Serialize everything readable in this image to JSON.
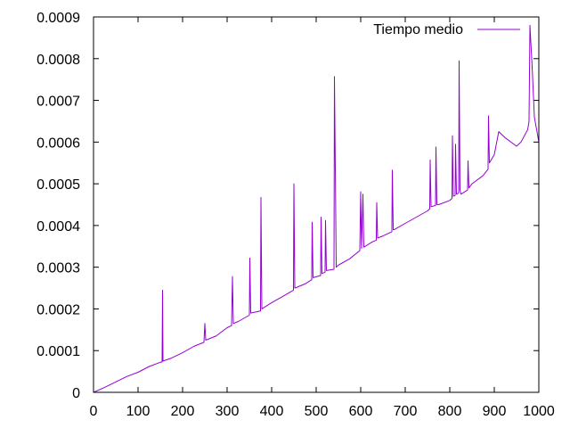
{
  "chart_data": {
    "type": "line",
    "title": "",
    "xlabel": "",
    "ylabel": "",
    "xlim": [
      0,
      1000
    ],
    "ylim": [
      0,
      0.0009
    ],
    "x_ticks": [
      0,
      100,
      200,
      300,
      400,
      500,
      600,
      700,
      800,
      900,
      1000
    ],
    "y_ticks": [
      0,
      0.0001,
      0.0002,
      0.0003,
      0.0004,
      0.0005,
      0.0006,
      0.0007,
      0.0008,
      0.0009
    ],
    "x_tick_labels": [
      "0",
      "100",
      "200",
      "300",
      "400",
      "500",
      "600",
      "700",
      "800",
      "900",
      "1000"
    ],
    "y_tick_labels": [
      "0",
      "0.0001",
      "0.0002",
      "0.0003",
      "0.0004",
      "0.0005",
      "0.0006",
      "0.0007",
      "0.0008",
      "0.0009"
    ],
    "grid": false,
    "legend_position": "top-right",
    "series": [
      {
        "name": "Tiempo medio",
        "color": "#9400d3",
        "x": [
          0,
          25,
          50,
          75,
          100,
          125,
          150,
          154,
          155,
          156,
          175,
          200,
          225,
          248,
          250,
          252,
          275,
          300,
          310,
          312,
          314,
          325,
          350,
          351,
          353,
          375,
          376,
          378,
          400,
          425,
          449,
          450,
          452,
          475,
          490,
          491,
          493,
          510,
          511,
          513,
          520,
          521,
          523,
          540,
          541,
          543,
          545,
          550,
          575,
          598,
          600,
          602,
          605,
          607,
          610,
          625,
          635,
          636,
          638,
          650,
          670,
          671,
          673,
          675,
          700,
          725,
          750,
          755,
          756,
          758,
          768,
          769,
          771,
          775,
          800,
          805,
          806,
          808,
          812,
          813,
          815,
          820,
          821,
          823,
          825,
          840,
          841,
          843,
          850,
          875,
          886,
          887,
          889,
          900,
          910,
          925,
          950,
          960,
          970,
          975,
          978,
          980,
          985,
          990,
          1000
        ],
        "y": [
          0,
          1.2e-05,
          2.5e-05,
          3.8e-05,
          4.8e-05,
          6.2e-05,
          7.2e-05,
          7.3e-05,
          0.000245,
          7.5e-05,
          8.2e-05,
          9.5e-05,
          0.00011,
          0.00012,
          0.000165,
          0.000125,
          0.000135,
          0.000155,
          0.00016,
          0.000278,
          0.000165,
          0.00017,
          0.000185,
          0.000322,
          0.00019,
          0.000195,
          0.000467,
          0.0002,
          0.000215,
          0.00023,
          0.000245,
          0.0005,
          0.00025,
          0.00026,
          0.00027,
          0.000408,
          0.000275,
          0.00028,
          0.00042,
          0.000285,
          0.000288,
          0.000412,
          0.000292,
          0.000295,
          0.000757,
          0.000535,
          0.0003,
          0.000305,
          0.00032,
          0.00034,
          0.000481,
          0.000345,
          0.000475,
          0.000348,
          0.00035,
          0.00036,
          0.000365,
          0.000455,
          0.00037,
          0.000375,
          0.000385,
          0.000533,
          0.00039,
          0.00039,
          0.000405,
          0.00042,
          0.000435,
          0.00044,
          0.000557,
          0.000445,
          0.000448,
          0.000588,
          0.00045,
          0.00045,
          0.00046,
          0.000465,
          0.000615,
          0.00047,
          0.000472,
          0.000595,
          0.000475,
          0.000478,
          0.000795,
          0.000485,
          0.000475,
          0.000485,
          0.000555,
          0.00049,
          0.0005,
          0.00052,
          0.000535,
          0.000663,
          0.00055,
          0.00057,
          0.000625,
          0.00061,
          0.00059,
          0.0006,
          0.00062,
          0.00063,
          0.00065,
          0.00088,
          0.00078,
          0.00066,
          0.0006
        ]
      }
    ]
  }
}
